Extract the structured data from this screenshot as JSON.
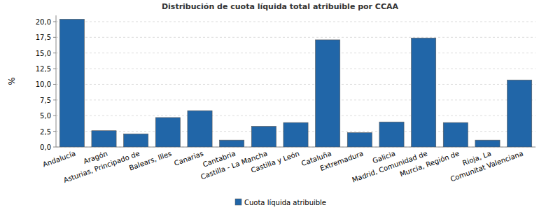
{
  "chart_data": {
    "type": "bar",
    "title": "Distribución de cuota líquida total atribuible por CCAA",
    "y_label": "%",
    "categories": [
      "Andalucía",
      "Aragón",
      "Asturias, Principado de",
      "Balears, Illes",
      "Canarias",
      "Cantabria",
      "Castilla - La Mancha",
      "Castilla y León",
      "Cataluña",
      "Extremadura",
      "Galicia",
      "Madrid, Comunidad de",
      "Murcia, Región de",
      "Rioja, La",
      "Comunitat Valenciana"
    ],
    "series": [
      {
        "name": "Cuota líquida atribuible",
        "color": "#2166a8",
        "values": [
          20.4,
          2.6,
          2.1,
          4.7,
          5.8,
          1.1,
          3.3,
          3.9,
          17.1,
          2.3,
          4.0,
          17.4,
          3.9,
          1.1,
          10.7
        ]
      }
    ],
    "ylim": [
      0,
      21
    ],
    "yticks": [
      {
        "value": 0,
        "label": "0,0"
      },
      {
        "value": 2.5,
        "label": "2,5"
      },
      {
        "value": 5,
        "label": "5,0"
      },
      {
        "value": 7.5,
        "label": "7,5"
      },
      {
        "value": 10,
        "label": "10,0"
      },
      {
        "value": 12.5,
        "label": "12,5"
      },
      {
        "value": 15,
        "label": "15,0"
      },
      {
        "value": 17.5,
        "label": "17,5"
      },
      {
        "value": 20,
        "label": "20,0"
      }
    ],
    "grid": true,
    "legend": "bottom"
  }
}
